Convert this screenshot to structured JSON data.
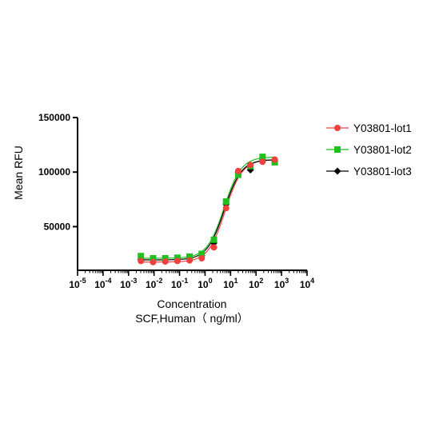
{
  "chart_data": {
    "type": "scatter",
    "ylabel": "Mean RFU",
    "xlabel": [
      "Concentration",
      "SCF,Human（ ng/ml）"
    ],
    "x_scale": "log10",
    "xlim": [
      1e-05,
      10000
    ],
    "ylim": [
      10000,
      150000
    ],
    "x_tick_exponents": [
      -5,
      -4,
      -3,
      -2,
      -1,
      0,
      1,
      2,
      3,
      4
    ],
    "y_ticks": [
      50000,
      100000,
      150000
    ],
    "y_tick_labels": [
      "50000",
      "100000",
      "150000"
    ],
    "grid": false,
    "legend_position": "right",
    "x": [
      0.00305,
      0.00915,
      0.0274,
      0.0823,
      0.247,
      0.741,
      2.22,
      6.67,
      20,
      60,
      180,
      540
    ],
    "series": [
      {
        "name": "Y03801-lot1",
        "color": "#f04040",
        "marker": "circle",
        "values": [
          18500,
          17500,
          18000,
          18500,
          19000,
          21000,
          31000,
          67000,
          101000,
          106500,
          109500,
          111500
        ]
      },
      {
        "name": "Y03801-lot2",
        "color": "#1fbf1f",
        "marker": "square",
        "values": [
          23000,
          21000,
          21000,
          21500,
          22500,
          25000,
          38000,
          73000,
          97500,
          105500,
          114000,
          109000
        ]
      },
      {
        "name": "Y03801-lot3",
        "color": "#000000",
        "marker": "diamond",
        "values": [
          20000,
          19500,
          19500,
          20000,
          21000,
          23500,
          35000,
          70500,
          99500,
          102000,
          111500,
          110000
        ]
      }
    ]
  }
}
